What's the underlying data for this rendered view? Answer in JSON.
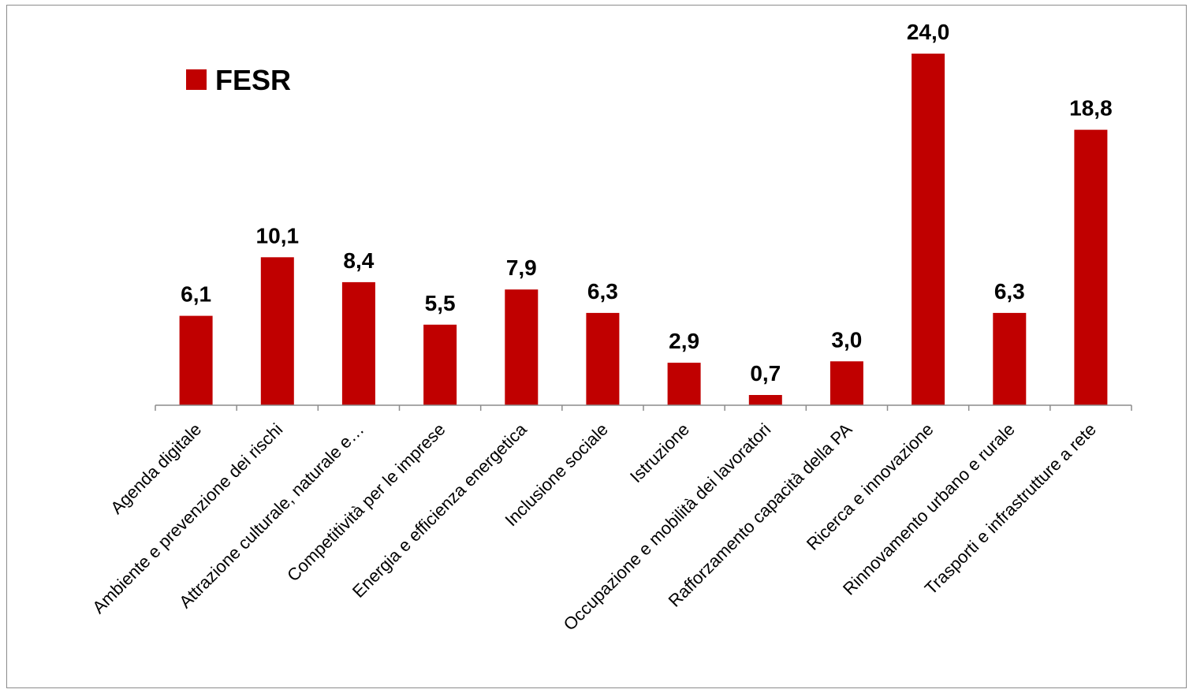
{
  "chart_data": {
    "type": "bar",
    "categories": [
      "Agenda digitale",
      "Ambiente e prevenzione dei rischi",
      "Attrazione culturale, naturale e…",
      "Competitività per le imprese",
      "Energia e efficienza energetica",
      "Inclusione sociale",
      "Istruzione",
      "Occupazione e mobilità dei lavoratori",
      "Rafforzamento capacità della PA",
      "Ricerca e innovazione",
      "Rinnovamento urbano  e rurale",
      "Trasporti e infrastrutture a rete"
    ],
    "series": [
      {
        "name": "FESR",
        "values": [
          6.1,
          10.1,
          8.4,
          5.5,
          7.9,
          6.3,
          2.9,
          0.7,
          3.0,
          24.0,
          6.3,
          18.8
        ],
        "labels": [
          "6,1",
          "10,1",
          "8,4",
          "5,5",
          "7,9",
          "6,3",
          "2,9",
          "0,7",
          "3,0",
          "24,0",
          "6,3",
          "18,8"
        ],
        "color": "#c00000"
      }
    ],
    "ylim": [
      0,
      24.0
    ],
    "grid": false,
    "legend": "top-left",
    "y_axis_visible": false
  },
  "colors": {
    "bar": "#c00000",
    "axis": "#8c8c8c",
    "frame": "#8c8c8c"
  }
}
